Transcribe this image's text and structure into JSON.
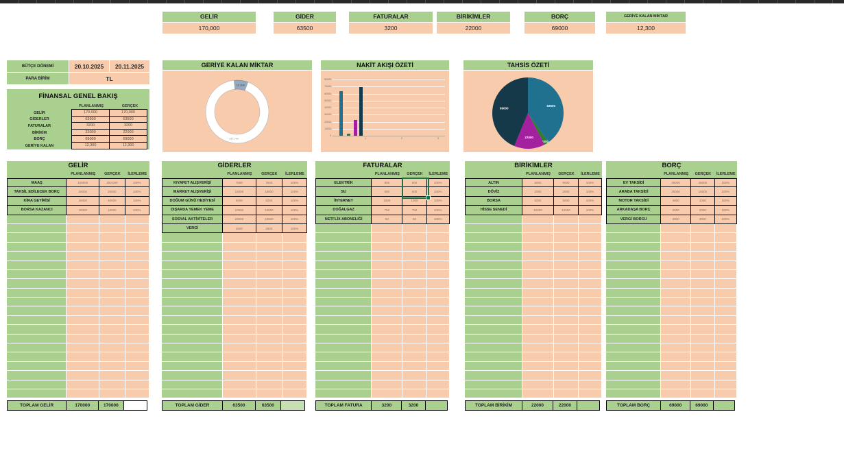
{
  "colors": {
    "header_green": "#A9D08E",
    "cell_salmon": "#F8CBAD",
    "excel_green": "#217346",
    "total_gider_progress_bg": "#C6E0B4"
  },
  "kpis": [
    {
      "label": "GELİR",
      "value": "170,000"
    },
    {
      "label": "GİDER",
      "value": "63500"
    },
    {
      "label": "FATURALAR",
      "value": "3200"
    },
    {
      "label": "BİRİKİMLER",
      "value": "22000"
    },
    {
      "label": "BORÇ",
      "value": "69000"
    },
    {
      "label": "GERİYE KALAN MİKTAR",
      "value": "12,300"
    }
  ],
  "info": {
    "budget_period_label": "BÜTÇE DÖNEMİ",
    "budget_start": "20.10.2025",
    "budget_end": "20.11.2025",
    "currency_label": "PARA BİRİM",
    "currency_value": "TL",
    "overview": {
      "title": "FİNANSAL GENEL BAKIŞ",
      "columns": [
        "PLANLANMIŞ",
        "GERÇEK"
      ],
      "rows": [
        {
          "label": "GELİR",
          "planned": "170,000",
          "actual": "170,000"
        },
        {
          "label": "GİDERLER",
          "planned": "63500",
          "actual": "63500"
        },
        {
          "label": "FATURALAR",
          "planned": "3200",
          "actual": "3200"
        },
        {
          "label": "BİRİKİM",
          "planned": "22000",
          "actual": "22000"
        },
        {
          "label": "BORÇ",
          "planned": "69000",
          "actual": "69000"
        },
        {
          "label": "GERİYE KALAN",
          "planned": "12,300",
          "actual": "12,300"
        }
      ]
    }
  },
  "chart_data": [
    {
      "type": "pie",
      "variant": "donut",
      "title": "GERİYE KALAN MİKTAR",
      "slices": [
        {
          "label": "12,300",
          "value": 12300,
          "color": "#95AABF"
        },
        {
          "label": "157,700",
          "value": 157700,
          "color": "#FFFFFF"
        }
      ],
      "legend": false
    },
    {
      "type": "bar",
      "title": "NAKİT AKIŞI ÖZETİ",
      "categories": [
        "GİDER",
        "FATURALAR",
        "BİRİKİM",
        "BORÇ"
      ],
      "values": [
        63500,
        3200,
        22000,
        69000
      ],
      "colors": [
        "#20708F",
        "#2F7D31",
        "#A3209E",
        "#16394A"
      ],
      "ylim": [
        0,
        80000
      ],
      "ytick_step": 10000,
      "xtick_labels": [
        "1",
        "2",
        "3"
      ],
      "grid": true,
      "legend": false
    },
    {
      "type": "pie",
      "title": "TAHSİS ÖZETİ",
      "slices": [
        {
          "label": "63500",
          "value": 63500,
          "color": "#20708F"
        },
        {
          "label": "3200",
          "value": 3200,
          "color": "#2F7D31"
        },
        {
          "label": "22000",
          "value": 22000,
          "color": "#A3209E"
        },
        {
          "label": "69000",
          "value": 69000,
          "color": "#16394A"
        }
      ],
      "legend": false
    }
  ],
  "tables": [
    {
      "title": "GELİR",
      "headers": [
        "PLANLANMIŞ",
        "GERÇEK",
        "İLERLEME"
      ],
      "rows": [
        [
          "MAAŞ",
          "100000",
          "100,000",
          "100%"
        ],
        [
          "TAHSİL EDİLECEK BORÇ",
          "20000",
          "20000",
          "100%"
        ],
        [
          "KİRA GETİRİSİ",
          "40000",
          "40000",
          "100%"
        ],
        [
          "BORSA KAZANCI",
          "10000",
          "10000",
          "100%"
        ]
      ],
      "empty_rows": 20,
      "total": {
        "label": "TOPLAM GELİR",
        "planned": "170000",
        "actual": "170000",
        "progress": "",
        "progress_bg": "#FFFFFF"
      }
    },
    {
      "title": "GİDERLER",
      "headers": [
        "PLANLANMIŞ",
        "GERÇEK",
        "İLERLEME"
      ],
      "rows": [
        [
          "KIYAFET ALIŞVERİŞİ",
          "7500",
          "7500",
          "100%"
        ],
        [
          "MARKET ALIŞVERİŞİ",
          "15000",
          "15000",
          "100%"
        ],
        [
          "DOĞUM GÜNÜ HEDİYESİ",
          "5000",
          "5000",
          "100%"
        ],
        [
          "DIŞARDA YEMEK YEME",
          "10000",
          "10000",
          "100%"
        ],
        [
          "SOSYAL AKTİVİTELER",
          "23500",
          "23500",
          "100%"
        ],
        [
          "VERGİ",
          "2500",
          "2500",
          "100%"
        ]
      ],
      "empty_rows": 18,
      "total": {
        "label": "TOPLAM GİDER",
        "planned": "63500",
        "actual": "63500",
        "progress": "",
        "progress_bg": "#C6E0B4"
      }
    },
    {
      "title": "FATURALAR",
      "headers": [
        "PLANLANMIŞ",
        "GERÇEK",
        "İLERLEME"
      ],
      "rows": [
        [
          "ELEKTRİK",
          "800",
          "800",
          "100%"
        ],
        [
          "SU",
          "600",
          "600",
          "100%"
        ],
        [
          "İNTERNET",
          "1000",
          "1000",
          "100%"
        ],
        [
          "DOĞALGAZ",
          "750",
          "750",
          "100%"
        ],
        [
          "NETFLİX ABONELİĞİ",
          "50",
          "50",
          "100%"
        ]
      ],
      "empty_rows": 19,
      "total": {
        "label": "TOPLAM FATURA",
        "planned": "3200",
        "actual": "3200",
        "progress": "",
        "progress_bg": "#A9D08E"
      }
    },
    {
      "title": "BİRİKİMLER",
      "headers": [
        "PLANLANMIŞ",
        "GERÇEK",
        "İLERLEME"
      ],
      "rows": [
        [
          "ALTIN",
          "5000",
          "5000",
          "100%"
        ],
        [
          "DÖVİZ",
          "2000",
          "2000",
          "100%"
        ],
        [
          "BORSA",
          "5000",
          "5000",
          "100%"
        ],
        [
          "HİSSE SENEDİ",
          "10000",
          "10000",
          "100%"
        ]
      ],
      "empty_rows": 20,
      "total": {
        "label": "TOPLAM BİRİKİM",
        "planned": "22000",
        "actual": "22000",
        "progress": "",
        "progress_bg": "#A9D08E"
      }
    },
    {
      "title": "BORÇ",
      "headers": [
        "PLANLANMIŞ",
        "GERÇEK",
        "İLERLEME"
      ],
      "rows": [
        [
          "EV TAKSİDİ",
          "45000",
          "45000",
          "100%"
        ],
        [
          "ARABA TAKSİDİ",
          "15000",
          "15000",
          "100%"
        ],
        [
          "MOTOR TAKSİDİ",
          "4000",
          "4000",
          "100%"
        ],
        [
          "ARKADAŞA BORÇ",
          "2000",
          "2000",
          "100%"
        ],
        [
          "VERGİ BORCU",
          "3000",
          "3000",
          "100%"
        ]
      ],
      "empty_rows": 19,
      "total": {
        "label": "TOPLAM BORÇ",
        "planned": "69000",
        "actual": "69000",
        "progress": "",
        "progress_bg": "#A9D08E"
      }
    }
  ]
}
